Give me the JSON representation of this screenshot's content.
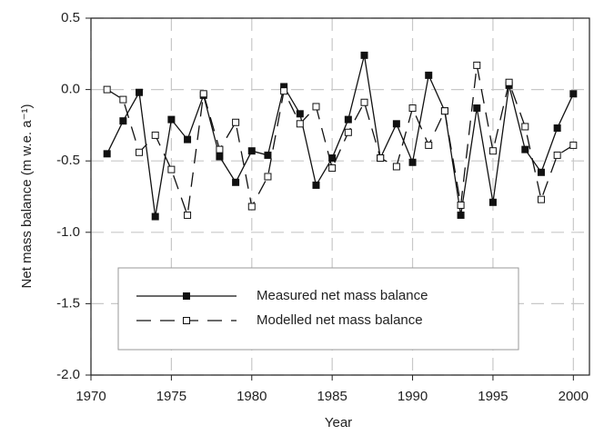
{
  "chart_data": {
    "type": "line",
    "xlabel": "Year",
    "ylabel": "Net mass balance (m w.e. a⁻¹)",
    "x": [
      1971,
      1972,
      1973,
      1974,
      1975,
      1976,
      1977,
      1978,
      1979,
      1980,
      1981,
      1982,
      1983,
      1984,
      1985,
      1986,
      1987,
      1988,
      1989,
      1990,
      1991,
      1992,
      1993,
      1994,
      1995,
      1996,
      1997,
      1998,
      1999,
      2000
    ],
    "series": [
      {
        "name": "Measured net mass balance",
        "color": "#111111",
        "linestyle": "solid",
        "marker_fill": "#111111",
        "values": [
          -0.45,
          -0.22,
          -0.02,
          -0.89,
          -0.21,
          -0.35,
          -0.04,
          -0.47,
          -0.65,
          -0.43,
          -0.46,
          0.02,
          -0.17,
          -0.67,
          -0.48,
          -0.21,
          0.24,
          -0.48,
          -0.24,
          -0.51,
          0.1,
          -0.15,
          -0.88,
          -0.13,
          -0.79,
          0.03,
          -0.42,
          -0.58,
          -0.27,
          -0.03
        ]
      },
      {
        "name": "Modelled net mass balance",
        "color": "#111111",
        "linestyle": "dashed",
        "marker_fill": "#ffffff",
        "values": [
          0.0,
          -0.07,
          -0.44,
          -0.32,
          -0.56,
          -0.88,
          -0.03,
          -0.42,
          -0.23,
          -0.82,
          -0.61,
          -0.01,
          -0.24,
          -0.12,
          -0.55,
          -0.3,
          -0.09,
          -0.48,
          -0.54,
          -0.13,
          -0.39,
          -0.15,
          -0.81,
          0.17,
          -0.43,
          0.05,
          -0.26,
          -0.77,
          -0.46,
          -0.39
        ]
      }
    ],
    "xlim": [
      1970,
      2001
    ],
    "xticks": [
      1970,
      1975,
      1980,
      1985,
      1990,
      1995,
      2000
    ],
    "ylim": [
      -2.0,
      0.5
    ],
    "yticks": [
      0.5,
      {
        "value": 0,
        "label": "0.0"
      },
      -0.5,
      {
        "value": -1,
        "label": "-1.0"
      },
      -1.5,
      {
        "value": -2,
        "label": "-2.0"
      }
    ],
    "grid": true,
    "legend": "lower center"
  }
}
